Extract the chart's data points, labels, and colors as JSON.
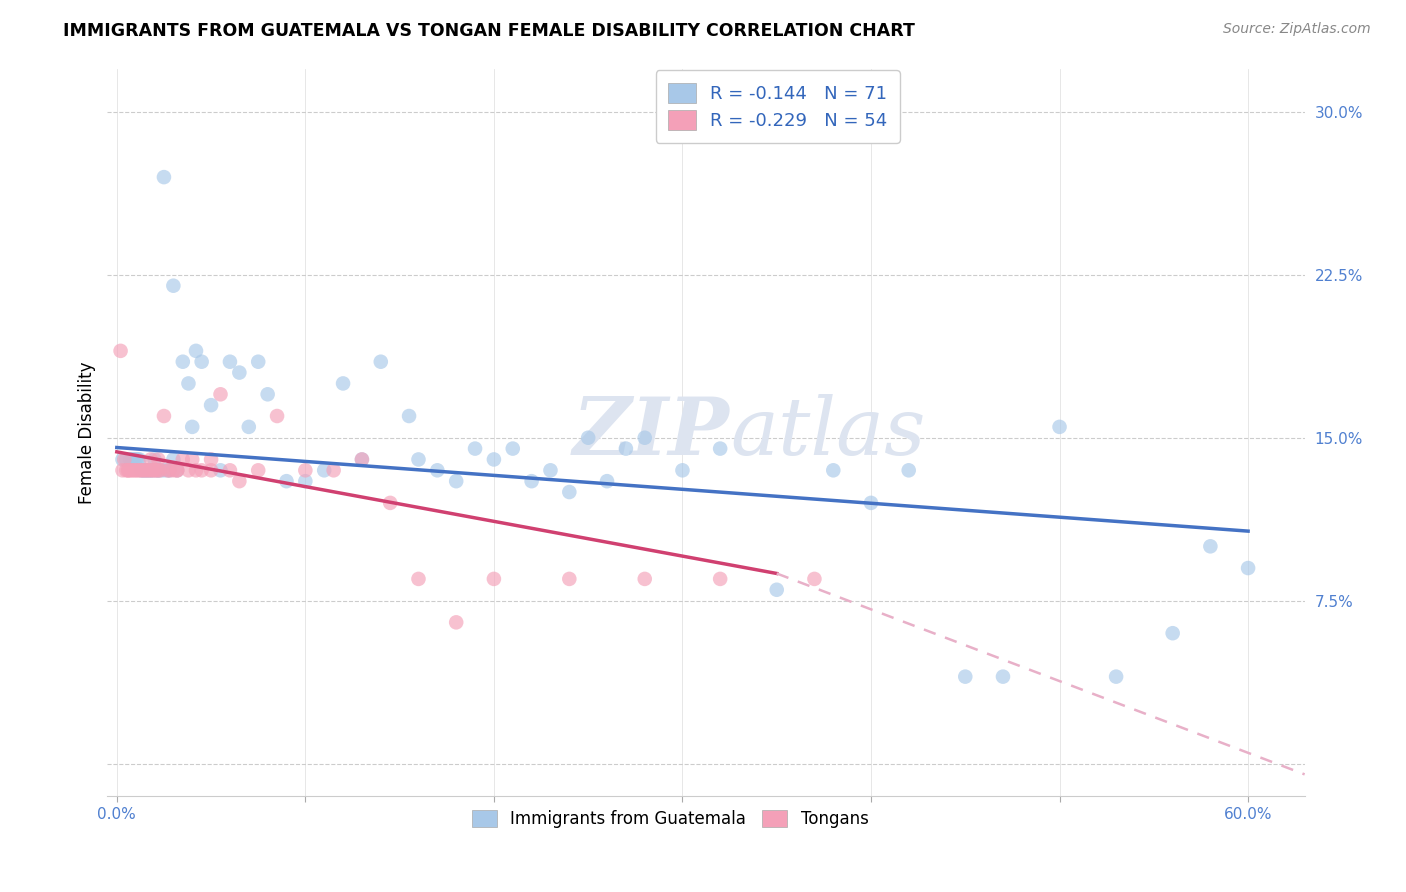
{
  "title": "IMMIGRANTS FROM GUATEMALA VS TONGAN FEMALE DISABILITY CORRELATION CHART",
  "source": "Source: ZipAtlas.com",
  "ylabel_label": "Female Disability",
  "x_tick_positions": [
    0.0,
    0.1,
    0.2,
    0.3,
    0.4,
    0.5,
    0.6
  ],
  "x_tick_labels_sparse": [
    "0.0%",
    "",
    "",
    "",
    "",
    "",
    "60.0%"
  ],
  "y_ticks": [
    0.0,
    0.075,
    0.15,
    0.225,
    0.3
  ],
  "y_tick_labels": [
    "",
    "7.5%",
    "15.0%",
    "22.5%",
    "30.0%"
  ],
  "xlim": [
    -0.005,
    0.63
  ],
  "ylim": [
    -0.015,
    0.32
  ],
  "legend_r1": "R = -0.144",
  "legend_n1": "N = 71",
  "legend_r2": "R = -0.229",
  "legend_n2": "N = 54",
  "color_blue": "#a8c8e8",
  "color_pink": "#f4a0b8",
  "color_blue_line": "#4472c4",
  "color_pink_line": "#d04070",
  "color_pink_dashed": "#e8b0c8",
  "watermark_color": "#dde4f0",
  "blue_scatter_x": [
    0.003,
    0.005,
    0.007,
    0.008,
    0.009,
    0.01,
    0.011,
    0.012,
    0.013,
    0.014,
    0.015,
    0.016,
    0.017,
    0.018,
    0.019,
    0.02,
    0.021,
    0.022,
    0.023,
    0.025,
    0.027,
    0.028,
    0.03,
    0.032,
    0.035,
    0.038,
    0.04,
    0.042,
    0.045,
    0.05,
    0.055,
    0.06,
    0.065,
    0.07,
    0.075,
    0.08,
    0.09,
    0.1,
    0.11,
    0.12,
    0.13,
    0.14,
    0.155,
    0.16,
    0.17,
    0.18,
    0.19,
    0.2,
    0.21,
    0.22,
    0.23,
    0.24,
    0.25,
    0.26,
    0.27,
    0.28,
    0.3,
    0.32,
    0.35,
    0.38,
    0.4,
    0.42,
    0.45,
    0.47,
    0.5,
    0.53,
    0.56,
    0.58,
    0.6,
    0.025,
    0.03
  ],
  "blue_scatter_y": [
    0.14,
    0.14,
    0.14,
    0.14,
    0.14,
    0.14,
    0.14,
    0.14,
    0.135,
    0.135,
    0.135,
    0.135,
    0.135,
    0.135,
    0.135,
    0.14,
    0.135,
    0.135,
    0.135,
    0.135,
    0.135,
    0.135,
    0.14,
    0.135,
    0.185,
    0.175,
    0.155,
    0.19,
    0.185,
    0.165,
    0.135,
    0.185,
    0.18,
    0.155,
    0.185,
    0.17,
    0.13,
    0.13,
    0.135,
    0.175,
    0.14,
    0.185,
    0.16,
    0.14,
    0.135,
    0.13,
    0.145,
    0.14,
    0.145,
    0.13,
    0.135,
    0.125,
    0.15,
    0.13,
    0.145,
    0.15,
    0.135,
    0.145,
    0.08,
    0.135,
    0.12,
    0.135,
    0.04,
    0.04,
    0.155,
    0.04,
    0.06,
    0.1,
    0.09,
    0.27,
    0.22
  ],
  "pink_scatter_x": [
    0.003,
    0.005,
    0.006,
    0.007,
    0.008,
    0.009,
    0.01,
    0.011,
    0.012,
    0.013,
    0.014,
    0.015,
    0.016,
    0.017,
    0.018,
    0.019,
    0.02,
    0.021,
    0.022,
    0.023,
    0.025,
    0.027,
    0.028,
    0.03,
    0.032,
    0.035,
    0.038,
    0.04,
    0.045,
    0.05,
    0.055,
    0.065,
    0.075,
    0.085,
    0.1,
    0.115,
    0.13,
    0.145,
    0.16,
    0.18,
    0.2,
    0.24,
    0.28,
    0.32,
    0.37,
    0.002,
    0.004,
    0.006,
    0.018,
    0.022,
    0.032,
    0.042,
    0.05,
    0.06
  ],
  "pink_scatter_y": [
    0.135,
    0.135,
    0.135,
    0.135,
    0.135,
    0.135,
    0.135,
    0.135,
    0.135,
    0.135,
    0.135,
    0.135,
    0.135,
    0.135,
    0.135,
    0.135,
    0.135,
    0.135,
    0.135,
    0.135,
    0.16,
    0.135,
    0.135,
    0.135,
    0.135,
    0.14,
    0.135,
    0.14,
    0.135,
    0.14,
    0.17,
    0.13,
    0.135,
    0.16,
    0.135,
    0.135,
    0.14,
    0.12,
    0.085,
    0.065,
    0.085,
    0.085,
    0.085,
    0.085,
    0.085,
    0.19,
    0.14,
    0.135,
    0.14,
    0.14,
    0.135,
    0.135,
    0.135,
    0.135
  ],
  "blue_line_x": [
    0.0,
    0.6
  ],
  "blue_line_y": [
    0.1455,
    0.107
  ],
  "pink_solid_line_x": [
    0.0,
    0.35
  ],
  "pink_solid_line_y": [
    0.1435,
    0.0875
  ],
  "pink_dashed_line_x": [
    0.35,
    0.63
  ],
  "pink_dashed_line_y": [
    0.0875,
    -0.005
  ]
}
